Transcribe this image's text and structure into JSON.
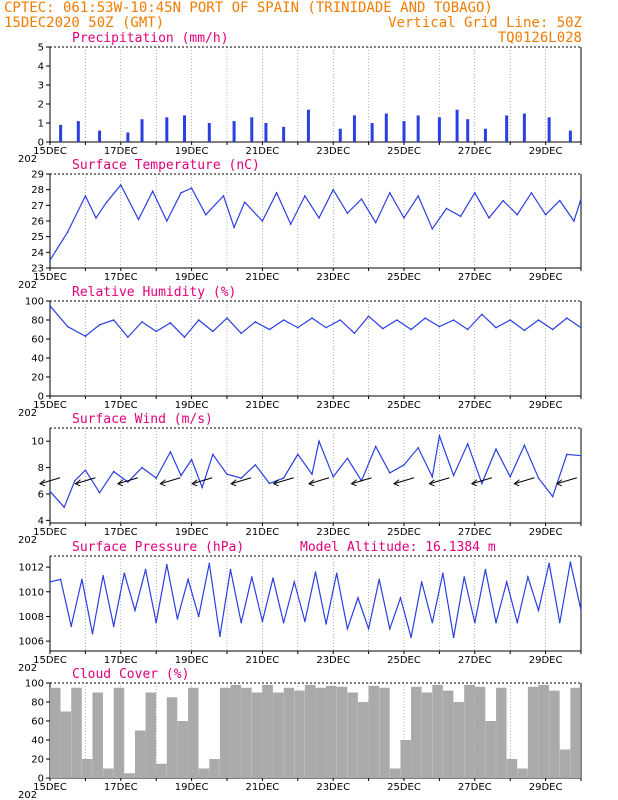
{
  "header": {
    "line1_left": "CPTEC:  061:53W-10:45N  PORT OF SPAIN (TRINIDADE AND TOBAGO)",
    "line2_left": "15DEC2020 50Z (GMT)",
    "line2_right": "Vertical Grid Line: 50Z",
    "line3_right": "TQ0126L028"
  },
  "x_tick_labels": [
    "15DEC",
    "17DEC",
    "19DEC",
    "21DEC",
    "23DEC",
    "25DEC",
    "27DEC",
    "29DEC"
  ],
  "x_year_fragment": "202",
  "colors": {
    "header": "#f07c00",
    "title": "#e0007a",
    "line": "#2b3fe0",
    "cloud": "#aaaaaa",
    "arrow": "#000000"
  },
  "chart_data": [
    {
      "type": "bar",
      "title": "Precipitation (mm/h)",
      "ylim": [
        0,
        5
      ],
      "yticks": [
        "0",
        "1",
        "2",
        "3",
        "4",
        "5"
      ],
      "x_range_days": [
        0,
        15
      ],
      "x": [
        0.3,
        0.8,
        1.4,
        2.2,
        2.6,
        3.3,
        3.8,
        4.5,
        5.2,
        5.7,
        6.1,
        6.6,
        7.3,
        8.2,
        8.6,
        9.1,
        9.5,
        10.0,
        10.4,
        11.0,
        11.5,
        11.8,
        12.3,
        12.9,
        13.4,
        14.1,
        14.7
      ],
      "values": [
        0.9,
        1.1,
        0.6,
        0.5,
        1.2,
        1.3,
        1.4,
        1.0,
        1.1,
        1.3,
        1.0,
        0.8,
        1.7,
        0.7,
        1.4,
        1.0,
        1.5,
        1.1,
        1.4,
        1.3,
        1.7,
        1.2,
        0.7,
        1.4,
        1.5,
        1.3,
        0.6
      ]
    },
    {
      "type": "line",
      "title": "Surface Temperature (nC)",
      "ylim": [
        23,
        29
      ],
      "yticks": [
        "23",
        "24",
        "25",
        "26",
        "27",
        "28",
        "29"
      ],
      "x": [
        0,
        0.5,
        1,
        1.3,
        1.6,
        2,
        2.5,
        2.9,
        3.3,
        3.7,
        4,
        4.4,
        4.9,
        5.2,
        5.5,
        6,
        6.4,
        6.8,
        7.2,
        7.6,
        8,
        8.4,
        8.8,
        9.2,
        9.6,
        10,
        10.4,
        10.8,
        11.2,
        11.6,
        12,
        12.4,
        12.8,
        13.2,
        13.6,
        14,
        14.4,
        14.8,
        15
      ],
      "values": [
        23.5,
        25.3,
        27.6,
        26.2,
        27.2,
        28.3,
        26.1,
        27.9,
        26.0,
        27.8,
        28.1,
        26.4,
        27.6,
        25.6,
        27.2,
        26.0,
        27.8,
        25.8,
        27.6,
        26.2,
        28.0,
        26.5,
        27.4,
        25.9,
        27.8,
        26.2,
        27.6,
        25.5,
        26.8,
        26.3,
        27.8,
        26.2,
        27.3,
        26.4,
        27.8,
        26.4,
        27.3,
        26.0,
        27.4
      ]
    },
    {
      "type": "line",
      "title": "Relative Humidity (%)",
      "ylim": [
        0,
        100
      ],
      "yticks": [
        "0",
        "20",
        "40",
        "60",
        "80",
        "100"
      ],
      "x": [
        0,
        0.5,
        1,
        1.4,
        1.8,
        2.2,
        2.6,
        3,
        3.4,
        3.8,
        4.2,
        4.6,
        5,
        5.4,
        5.8,
        6.2,
        6.6,
        7,
        7.4,
        7.8,
        8.2,
        8.6,
        9,
        9.4,
        9.8,
        10.2,
        10.6,
        11,
        11.4,
        11.8,
        12.2,
        12.6,
        13,
        13.4,
        13.8,
        14.2,
        14.6,
        15
      ],
      "values": [
        95,
        73,
        63,
        75,
        80,
        62,
        78,
        68,
        77,
        62,
        80,
        68,
        82,
        66,
        78,
        70,
        80,
        72,
        82,
        72,
        80,
        66,
        84,
        71,
        80,
        70,
        82,
        73,
        80,
        70,
        86,
        72,
        80,
        69,
        80,
        70,
        82,
        72
      ]
    },
    {
      "type": "line",
      "title": "Surface Wind (m/s)",
      "ylim": [
        3.8,
        11
      ],
      "yticks": [
        "4",
        "6",
        "8",
        "10"
      ],
      "x": [
        0,
        0.4,
        0.7,
        1,
        1.4,
        1.8,
        2.2,
        2.6,
        3,
        3.4,
        3.7,
        4,
        4.3,
        4.6,
        5,
        5.4,
        5.8,
        6.2,
        6.6,
        7,
        7.4,
        7.6,
        8,
        8.4,
        8.8,
        9.2,
        9.6,
        10,
        10.4,
        10.8,
        11,
        11.4,
        11.8,
        12.2,
        12.6,
        13,
        13.4,
        13.8,
        14.2,
        14.6,
        15
      ],
      "values": [
        6.2,
        5.0,
        7.0,
        7.8,
        6.1,
        7.7,
        6.9,
        8.0,
        7.2,
        9.2,
        7.4,
        8.6,
        6.5,
        9.0,
        7.5,
        7.2,
        8.2,
        6.8,
        7.2,
        9.0,
        7.5,
        10.0,
        7.3,
        8.7,
        7.0,
        9.6,
        7.6,
        8.2,
        9.5,
        7.3,
        10.4,
        7.4,
        9.8,
        6.8,
        9.4,
        7.3,
        9.7,
        7.2,
        5.8,
        9.0,
        8.9
      ],
      "arrows_note": "wind direction vectors drawn along the series"
    },
    {
      "type": "line",
      "title": "Surface Pressure (hPa)",
      "annotation": "Model Altitude: 16.1384 m",
      "ylim": [
        1005.2,
        1012.9
      ],
      "yticks": [
        "1006",
        "1008",
        "1010",
        "1012"
      ],
      "x": [
        0,
        0.3,
        0.6,
        0.9,
        1.2,
        1.5,
        1.8,
        2.1,
        2.4,
        2.7,
        3,
        3.3,
        3.6,
        3.9,
        4.2,
        4.5,
        4.8,
        5.1,
        5.4,
        5.7,
        6,
        6.3,
        6.6,
        6.9,
        7.2,
        7.5,
        7.8,
        8.1,
        8.4,
        8.7,
        9,
        9.3,
        9.6,
        9.9,
        10.2,
        10.5,
        10.8,
        11.1,
        11.4,
        11.7,
        12,
        12.3,
        12.6,
        12.9,
        13.2,
        13.5,
        13.8,
        14.1,
        14.4,
        14.7,
        15
      ],
      "values": [
        1010.8,
        1011.0,
        1007.2,
        1011.0,
        1006.6,
        1011.3,
        1007.2,
        1011.5,
        1008.5,
        1011.8,
        1007.5,
        1012.2,
        1007.8,
        1011.0,
        1008.0,
        1012.3,
        1006.4,
        1011.8,
        1007.5,
        1011.2,
        1007.6,
        1011.1,
        1007.5,
        1010.8,
        1007.6,
        1011.6,
        1007.4,
        1011.5,
        1007.0,
        1009.5,
        1007.0,
        1011.0,
        1007.0,
        1009.5,
        1006.3,
        1010.8,
        1007.5,
        1011.5,
        1006.3,
        1011.2,
        1007.5,
        1011.8,
        1007.5,
        1010.8,
        1007.5,
        1011.2,
        1008.5,
        1012.3,
        1007.5,
        1012.4,
        1008.5
      ]
    },
    {
      "type": "bar",
      "title": "Cloud Cover (%)",
      "ylim": [
        0,
        100
      ],
      "yticks": [
        "0",
        "20",
        "40",
        "60",
        "80",
        "100"
      ],
      "x_range_days": [
        0,
        15
      ],
      "x": [
        0.0,
        0.3,
        0.6,
        0.9,
        1.2,
        1.5,
        1.8,
        2.1,
        2.4,
        2.7,
        3.0,
        3.3,
        3.6,
        3.9,
        4.2,
        4.5,
        4.8,
        5.1,
        5.4,
        5.7,
        6.0,
        6.3,
        6.6,
        6.9,
        7.2,
        7.5,
        7.8,
        8.1,
        8.4,
        8.7,
        9.0,
        9.3,
        9.6,
        9.9,
        10.2,
        10.5,
        10.8,
        11.1,
        11.4,
        11.7,
        12.0,
        12.3,
        12.6,
        12.9,
        13.2,
        13.5,
        13.8,
        14.1,
        14.4,
        14.7
      ],
      "values": [
        95,
        70,
        95,
        20,
        90,
        10,
        95,
        5,
        50,
        90,
        15,
        85,
        60,
        95,
        10,
        20,
        95,
        98,
        95,
        90,
        98,
        90,
        95,
        92,
        98,
        95,
        97,
        96,
        90,
        80,
        97,
        95,
        10,
        40,
        96,
        90,
        98,
        92,
        80,
        98,
        96,
        60,
        95,
        20,
        10,
        96,
        98,
        92,
        30,
        95
      ]
    }
  ]
}
